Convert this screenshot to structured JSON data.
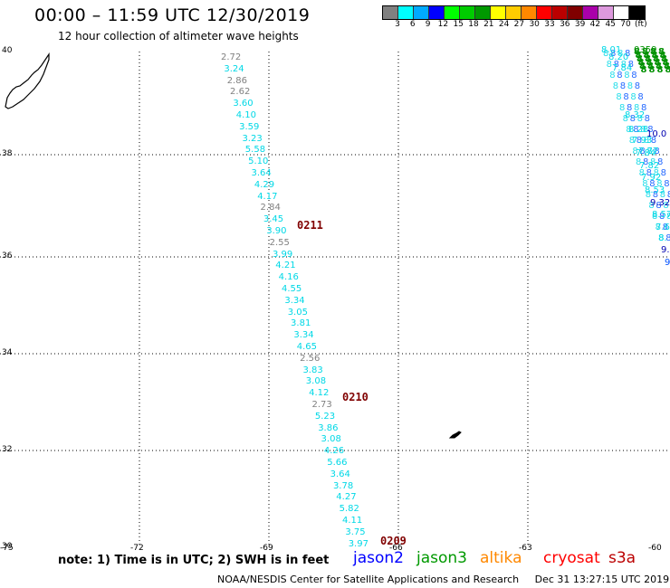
{
  "header": {
    "title": "00:00 – 11:59 UTC 12/30/2019",
    "subtitle": "12 hour collection of altimeter wave heights"
  },
  "colorbar": {
    "colors": [
      "#808080",
      "#00ffff",
      "#00aaff",
      "#0000ff",
      "#00ff00",
      "#00cc00",
      "#009900",
      "#ffff00",
      "#ffcc00",
      "#ff8800",
      "#ff0000",
      "#bb0000",
      "#800000",
      "#aa00aa",
      "#dd99dd",
      "#ffffff",
      "#000000"
    ],
    "labels": [
      "3",
      "6",
      "9",
      "12",
      "15",
      "18",
      "21",
      "24",
      "27",
      "30",
      "33",
      "36",
      "39",
      "42",
      "45",
      "70",
      "(ft)"
    ]
  },
  "axes": {
    "lat_labels": [
      "40",
      "38",
      "36",
      "34",
      "32",
      "30"
    ],
    "lon_labels": [
      "-75",
      "-72",
      "-69",
      "-66",
      "-63",
      "-60"
    ]
  },
  "track_labels": {
    "west": [
      "2.72",
      "3.24",
      "2.86",
      "2.62",
      "3.60",
      "4.10",
      "3.59",
      "3.23",
      "5.58",
      "5.10",
      "3.64",
      "4.29",
      "4.17",
      "2.84",
      "3.45",
      "3.90",
      "2.55",
      "3.99",
      "4.21",
      "4.16",
      "4.55",
      "3.34",
      "3.05",
      "3.81",
      "3.34",
      "4.65",
      "2.56",
      "3.83",
      "3.08",
      "4.12",
      "2.73",
      "5.23",
      "3.86",
      "3.08",
      "4.26",
      "5.66",
      "3.64",
      "3.78",
      "4.27",
      "5.82",
      "4.11",
      "3.75",
      "3.97"
    ],
    "east": [
      "8.01",
      "0359",
      "8.20",
      "7.84",
      "8.32",
      "8.28",
      "10.0",
      "7.93",
      "7.77",
      "7.84",
      "7.82",
      "7.92",
      "8.53",
      "9.32",
      "8.57",
      "7.6",
      "8.",
      "9.",
      "9"
    ]
  },
  "times": [
    "0211",
    "0210",
    "0209"
  ],
  "footer": {
    "note": "note: 1) Time is in UTC; 2) SWH is in feet",
    "satellites": [
      {
        "name": "jason2",
        "color": "#0000ff"
      },
      {
        "name": "jason3",
        "color": "#009900"
      },
      {
        "name": "altika",
        "color": "#ff8800"
      },
      {
        "name": "cryosat",
        "color": "#ff0000"
      },
      {
        "name": "s3a",
        "color": "#bb0000"
      }
    ],
    "credit": "NOAA/NESDIS Center for Satellite Applications and Research     Dec 31 13:27:15 UTC 2019"
  }
}
